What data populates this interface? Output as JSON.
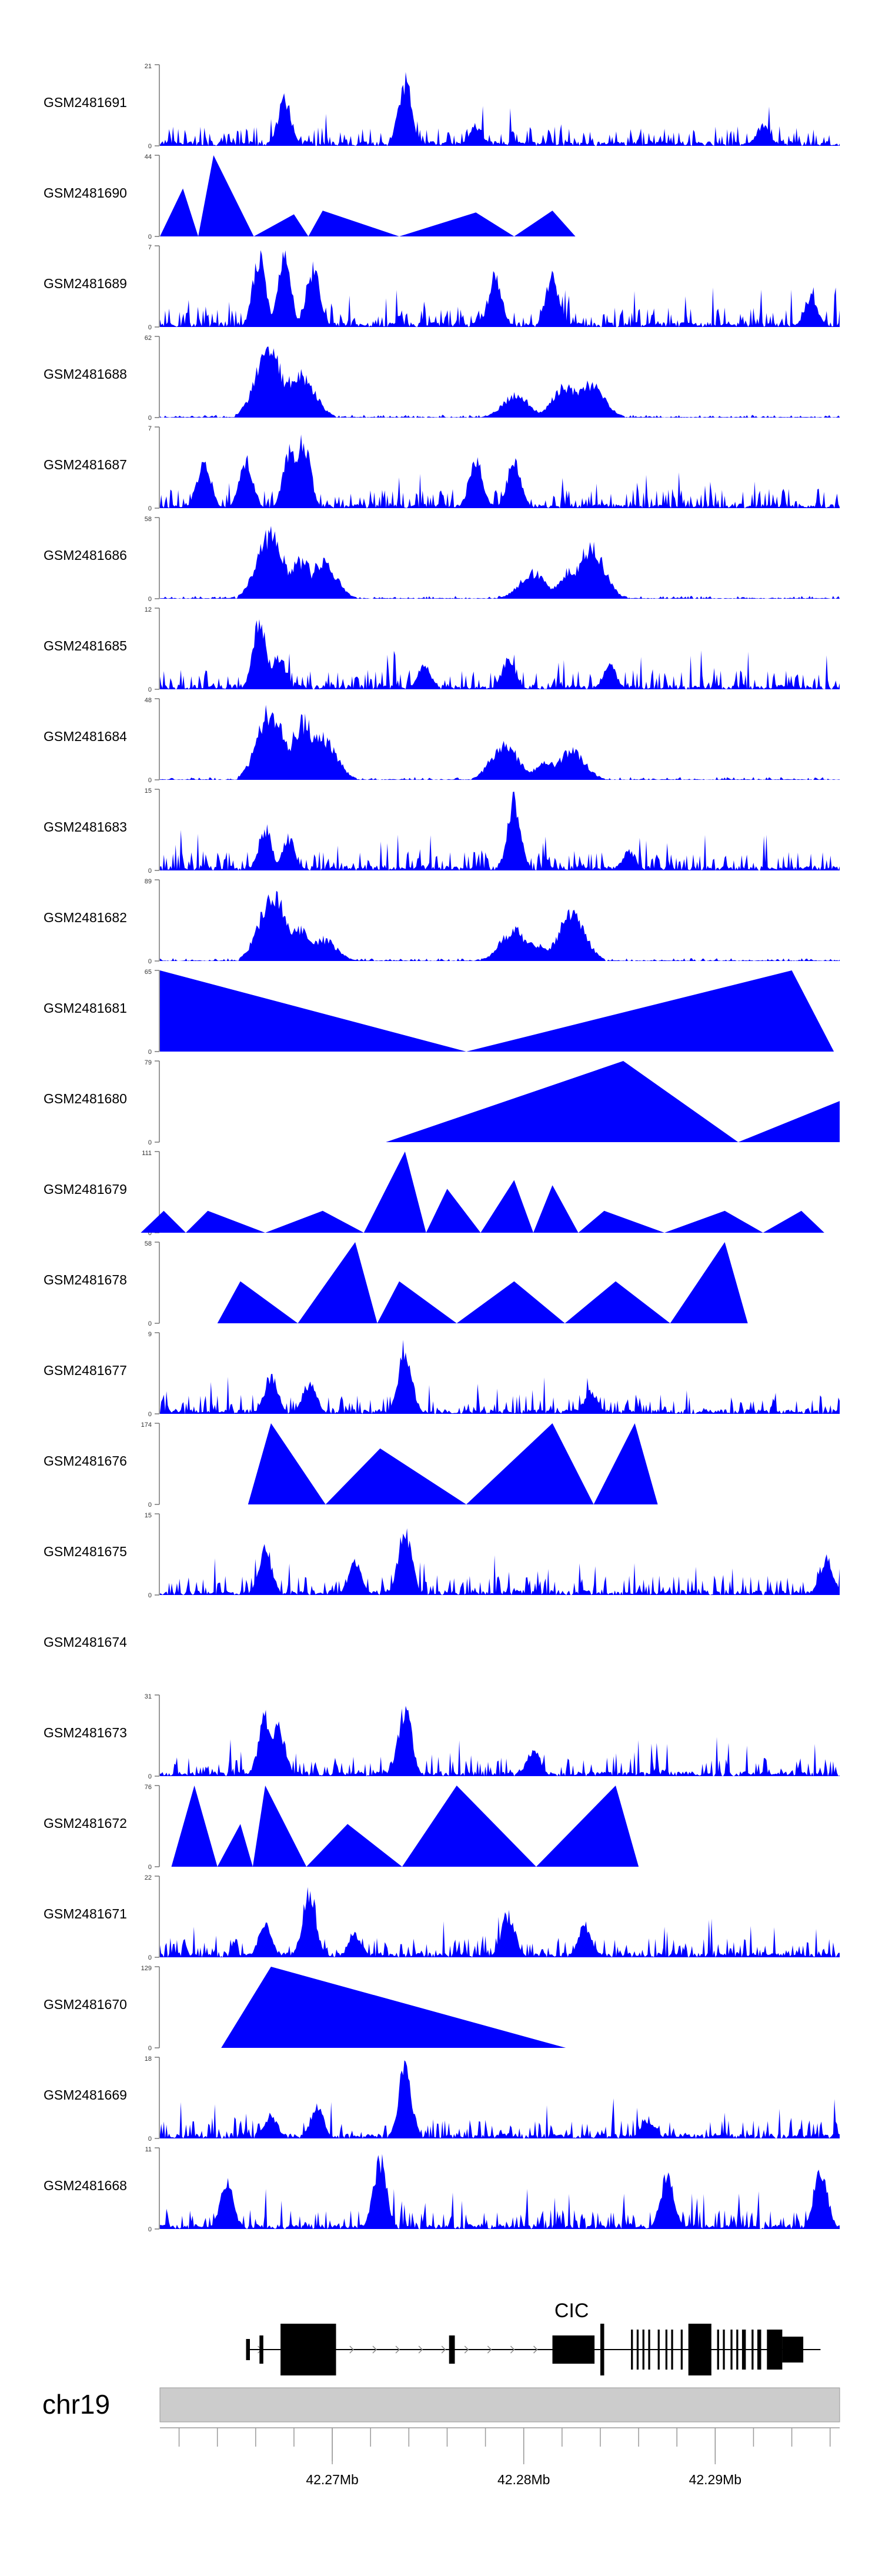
{
  "chart_data": {
    "type": "area",
    "title": "",
    "colors": {
      "track": "#0000ff",
      "gene": "#000000",
      "ideogram": "#cccccc"
    },
    "xlabel": "",
    "x_range_mb": [
      42.261,
      42.2965
    ],
    "x_ticks": [
      {
        "value": 42.27,
        "label": "42.27Mb"
      },
      {
        "value": 42.28,
        "label": "42.28Mb"
      },
      {
        "value": 42.29,
        "label": "42.29Mb"
      }
    ],
    "chromosome": "chr19",
    "gene": {
      "name": "CIC",
      "strand": "+",
      "start_mb": 42.2655,
      "end_mb": 42.2955
    },
    "series": [
      {
        "name": "GSM2481691",
        "ymax": 21,
        "pattern": "noise",
        "peaks": [
          [
            42.2675,
            14
          ],
          [
            42.2738,
            20
          ],
          [
            42.2775,
            6
          ],
          [
            42.2925,
            6
          ]
        ]
      },
      {
        "name": "GSM2481690",
        "ymax": 44,
        "pattern": "triangles",
        "peaks": [
          [
            42.2622,
            26
          ],
          [
            42.2638,
            44
          ],
          [
            42.268,
            12
          ],
          [
            42.2695,
            14
          ],
          [
            42.2775,
            13
          ],
          [
            42.2815,
            14
          ]
        ]
      },
      {
        "name": "GSM2481689",
        "ymax": 7,
        "pattern": "noise",
        "peaks": [
          [
            42.2662,
            7
          ],
          [
            42.2675,
            7
          ],
          [
            42.269,
            6
          ],
          [
            42.2785,
            5
          ],
          [
            42.2815,
            5
          ],
          [
            42.295,
            3
          ]
        ]
      },
      {
        "name": "GSM2481688",
        "ymax": 62,
        "pattern": "sparse",
        "peaks": [
          [
            42.2667,
            62
          ],
          [
            42.2676,
            33
          ],
          [
            42.2684,
            38
          ],
          [
            42.2796,
            20
          ],
          [
            42.2822,
            28
          ],
          [
            42.2835,
            30
          ]
        ]
      },
      {
        "name": "GSM2481687",
        "ymax": 7,
        "pattern": "noise",
        "peaks": [
          [
            42.2633,
            5
          ],
          [
            42.2655,
            5
          ],
          [
            42.2678,
            6
          ],
          [
            42.2685,
            7
          ],
          [
            42.2775,
            5
          ],
          [
            42.2795,
            5
          ]
        ]
      },
      {
        "name": "GSM2481686",
        "ymax": 58,
        "pattern": "sparse",
        "peaks": [
          [
            42.2668,
            55
          ],
          [
            42.2683,
            32
          ],
          [
            42.2695,
            30
          ],
          [
            42.2805,
            22
          ],
          [
            42.2825,
            24
          ],
          [
            42.2835,
            42
          ]
        ]
      },
      {
        "name": "GSM2481685",
        "ymax": 12,
        "pattern": "noise",
        "peaks": [
          [
            42.2662,
            12
          ],
          [
            42.2672,
            6
          ],
          [
            42.2748,
            4
          ],
          [
            42.2792,
            5
          ],
          [
            42.2845,
            4
          ]
        ]
      },
      {
        "name": "GSM2481684",
        "ymax": 48,
        "pattern": "sparse",
        "peaks": [
          [
            42.2668,
            48
          ],
          [
            42.2685,
            40
          ],
          [
            42.2695,
            30
          ],
          [
            42.279,
            25
          ],
          [
            42.2812,
            12
          ],
          [
            42.2825,
            20
          ]
        ]
      },
      {
        "name": "GSM2481683",
        "ymax": 15,
        "pattern": "noise",
        "peaks": [
          [
            42.2665,
            9
          ],
          [
            42.2677,
            7
          ],
          [
            42.2795,
            15
          ],
          [
            42.2855,
            4
          ]
        ]
      },
      {
        "name": "GSM2481682",
        "ymax": 89,
        "pattern": "sparse",
        "peaks": [
          [
            42.2669,
            89
          ],
          [
            42.2683,
            40
          ],
          [
            42.2695,
            28
          ],
          [
            42.2795,
            40
          ],
          [
            42.2805,
            22
          ],
          [
            42.2825,
            58
          ]
        ]
      },
      {
        "name": "GSM2481681",
        "ymax": 65,
        "pattern": "custom",
        "polys": [
          [
            [
              42.261,
              0
            ],
            [
              42.261,
              65
            ],
            [
              42.277,
              0
            ]
          ],
          [
            [
              42.277,
              0
            ],
            [
              42.294,
              65
            ],
            [
              42.2962,
              0
            ]
          ]
        ]
      },
      {
        "name": "GSM2481680",
        "ymax": 79,
        "pattern": "custom",
        "polys": [
          [
            [
              42.2728,
              0
            ],
            [
              42.2852,
              79
            ],
            [
              42.2912,
              0
            ]
          ],
          [
            [
              42.2912,
              0
            ],
            [
              42.2965,
              40
            ],
            [
              42.2965,
              0
            ]
          ]
        ]
      },
      {
        "name": "GSM2481679",
        "ymax": 111,
        "pattern": "triangles",
        "peaks": [
          [
            42.2612,
            30
          ],
          [
            42.2635,
            30
          ],
          [
            42.2695,
            30
          ],
          [
            42.2738,
            111
          ],
          [
            42.276,
            60
          ],
          [
            42.2795,
            72
          ],
          [
            42.2815,
            65
          ],
          [
            42.2842,
            30
          ],
          [
            42.2905,
            30
          ],
          [
            42.2945,
            30
          ]
        ]
      },
      {
        "name": "GSM2481678",
        "ymax": 58,
        "pattern": "triangles",
        "peaks": [
          [
            42.2652,
            30
          ],
          [
            42.2712,
            58
          ],
          [
            42.2735,
            30
          ],
          [
            42.2795,
            30
          ],
          [
            42.2848,
            30
          ],
          [
            42.2905,
            58
          ]
        ]
      },
      {
        "name": "GSM2481677",
        "ymax": 9,
        "pattern": "noise",
        "peaks": [
          [
            42.2668,
            5
          ],
          [
            42.2688,
            4
          ],
          [
            42.2738,
            9
          ],
          [
            42.2835,
            3
          ]
        ]
      },
      {
        "name": "GSM2481676",
        "ymax": 174,
        "pattern": "triangles",
        "peaks": [
          [
            42.2668,
            174
          ],
          [
            42.2725,
            120
          ],
          [
            42.2815,
            174
          ],
          [
            42.2858,
            174
          ]
        ]
      },
      {
        "name": "GSM2481675",
        "ymax": 15,
        "pattern": "noise",
        "peaks": [
          [
            42.2665,
            10
          ],
          [
            42.2738,
            15
          ],
          [
            42.2712,
            7
          ],
          [
            42.2958,
            8
          ]
        ]
      },
      {
        "name": "GSM2481674",
        "ymax": null,
        "pattern": "empty"
      },
      {
        "name": "GSM2481673",
        "ymax": 31,
        "pattern": "noise",
        "peaks": [
          [
            42.2665,
            26
          ],
          [
            42.2672,
            22
          ],
          [
            42.2738,
            31
          ],
          [
            42.2805,
            12
          ]
        ]
      },
      {
        "name": "GSM2481672",
        "ymax": 76,
        "pattern": "triangles",
        "peaks": [
          [
            42.2628,
            76
          ],
          [
            42.2652,
            40
          ],
          [
            42.2665,
            76
          ],
          [
            42.2708,
            40
          ],
          [
            42.2765,
            76
          ],
          [
            42.2848,
            76
          ]
        ]
      },
      {
        "name": "GSM2481671",
        "ymax": 22,
        "pattern": "noise",
        "peaks": [
          [
            42.2665,
            10
          ],
          [
            42.2688,
            22
          ],
          [
            42.2712,
            7
          ],
          [
            42.2792,
            14
          ],
          [
            42.2832,
            10
          ]
        ]
      },
      {
        "name": "GSM2481670",
        "ymax": 129,
        "pattern": "custom",
        "polys": [
          [
            [
              42.2642,
              0
            ],
            [
              42.2668,
              129
            ],
            [
              42.2822,
              0
            ]
          ]
        ]
      },
      {
        "name": "GSM2481669",
        "ymax": 18,
        "pattern": "noise",
        "peaks": [
          [
            42.2668,
            6
          ],
          [
            42.2692,
            8
          ],
          [
            42.2738,
            18
          ],
          [
            42.2865,
            5
          ]
        ]
      },
      {
        "name": "GSM2481668",
        "ymax": 11,
        "pattern": "noise",
        "peaks": [
          [
            42.2725,
            11
          ],
          [
            42.2645,
            7
          ],
          [
            42.2875,
            9
          ],
          [
            42.2955,
            10
          ]
        ]
      }
    ]
  }
}
